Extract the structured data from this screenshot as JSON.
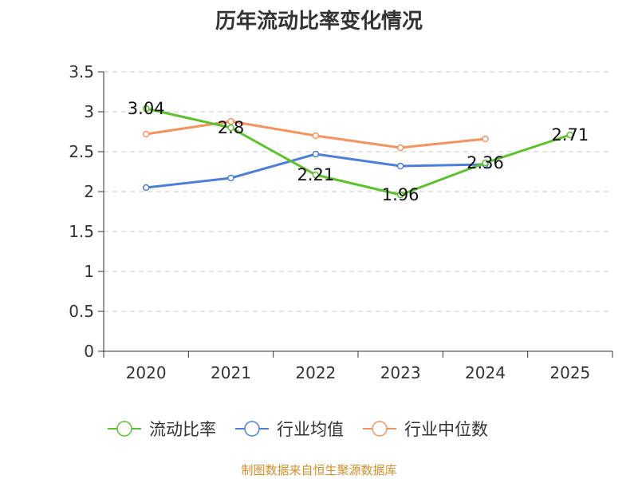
{
  "chart_data": {
    "type": "line",
    "title": "历年流动比率变化情况",
    "categories": [
      "2020",
      "2021",
      "2022",
      "2023",
      "2024",
      "2025"
    ],
    "ylim": [
      0,
      3.5
    ],
    "yticks": [
      "0",
      "0.5",
      "1",
      "1.5",
      "2",
      "2.5",
      "3",
      "3.5"
    ],
    "grid": true,
    "legend_position": "bottom",
    "series": [
      {
        "name": "流动比率",
        "color": "#5cc12b",
        "values": [
          3.04,
          2.8,
          2.21,
          1.96,
          2.36,
          2.71
        ],
        "labels": [
          "3.04",
          "2.8",
          "2.21",
          "1.96",
          "2.36",
          "2.71"
        ]
      },
      {
        "name": "行业均值",
        "color": "#4e7fd8",
        "values": [
          2.05,
          2.17,
          2.47,
          2.32,
          2.34,
          null
        ]
      },
      {
        "name": "行业中位数",
        "color": "#f5935f",
        "values": [
          2.72,
          2.88,
          2.7,
          2.55,
          2.66,
          null
        ]
      }
    ],
    "source": "制图数据来自恒生聚源数据库"
  }
}
